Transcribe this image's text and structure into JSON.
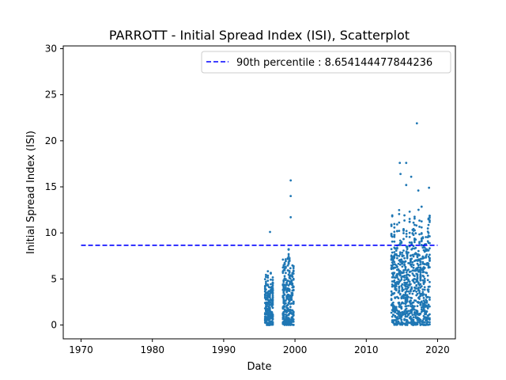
{
  "chart_data": {
    "type": "scatter",
    "title": "PARROTT - Initial Spread Index (ISI), Scatterplot",
    "xlabel": "Date",
    "ylabel": "Initial Spread Index (ISI)",
    "xlim": [
      1967.5,
      2022.5
    ],
    "ylim": [
      -1.5,
      30.3
    ],
    "xticks": [
      1970,
      1980,
      1990,
      2000,
      2010,
      2020
    ],
    "yticks": [
      0,
      5,
      10,
      15,
      20,
      25,
      30
    ],
    "grid": false,
    "legend": {
      "placement": "top-right",
      "entries": [
        "90th percentile : 8.654144477844236"
      ]
    },
    "colors": {
      "points": "#1f77b4",
      "percentile_line": "#0000ff"
    },
    "percentile_line": {
      "label": "90th percentile : 8.654144477844236",
      "y": 8.654144477844236,
      "x_start": 1970,
      "x_end": 2020,
      "style": "dashed"
    },
    "series": [
      {
        "marker": "dot",
        "clusters": [
          {
            "x_range": [
              1995.8,
              1996.9
            ],
            "y_max": 6.0,
            "outliers": [
              [
                1996.5,
                10.1
              ]
            ]
          },
          {
            "x_range": [
              1998.3,
              1999.8
            ],
            "y_max": 8.8,
            "outliers": [
              [
                1999.4,
                15.7
              ],
              [
                1999.4,
                14.0
              ],
              [
                1999.4,
                11.7
              ]
            ]
          },
          {
            "x_range": [
              2013.5,
              2018.9
            ],
            "y_max": 13.5,
            "outliers": [
              [
                2014.7,
                17.6
              ],
              [
                2015.6,
                17.6
              ],
              [
                2014.8,
                16.4
              ],
              [
                2016.3,
                16.1
              ],
              [
                2017.1,
                21.9
              ],
              [
                2018.8,
                14.9
              ],
              [
                2017.3,
                14.6
              ],
              [
                2015.6,
                15.2
              ]
            ]
          }
        ]
      }
    ]
  }
}
